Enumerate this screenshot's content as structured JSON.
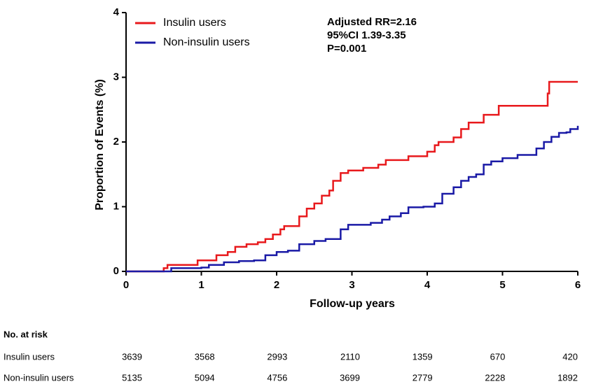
{
  "chart_data": {
    "type": "step",
    "x_label": "Follow-up years",
    "y_label": "Proportion of Events (%)",
    "xlim": [
      0,
      6
    ],
    "xticks": [
      0,
      1,
      2,
      3,
      4,
      5,
      6
    ],
    "ylim": [
      0,
      4
    ],
    "yticks": [
      0,
      1,
      2,
      3,
      4
    ],
    "grid": false,
    "legend": "top-left",
    "annotations": [
      "Adjusted RR=2.16",
      "95%CI 1.39-3.35",
      "P=0.001"
    ],
    "series": [
      {
        "name": "Insulin users",
        "color": "#e8191c",
        "x": [
          0,
          0.3,
          0.5,
          0.55,
          0.95,
          1.2,
          1.35,
          1.45,
          1.6,
          1.75,
          1.85,
          1.95,
          2.05,
          2.1,
          2.3,
          2.4,
          2.5,
          2.6,
          2.7,
          2.75,
          2.85,
          2.95,
          3.15,
          3.35,
          3.45,
          3.75,
          4.0,
          4.1,
          4.15,
          4.35,
          4.45,
          4.55,
          4.75,
          4.95,
          5.6,
          5.62,
          6.0
        ],
        "values": [
          0,
          0,
          0.05,
          0.1,
          0.17,
          0.25,
          0.3,
          0.38,
          0.42,
          0.45,
          0.5,
          0.57,
          0.65,
          0.7,
          0.85,
          0.97,
          1.05,
          1.17,
          1.25,
          1.4,
          1.52,
          1.56,
          1.6,
          1.65,
          1.72,
          1.78,
          1.85,
          1.95,
          2.0,
          2.07,
          2.2,
          2.3,
          2.42,
          2.56,
          2.75,
          2.93,
          2.93
        ]
      },
      {
        "name": "Non-insulin users",
        "color": "#1a1aa6",
        "x": [
          0,
          0.4,
          0.6,
          1.0,
          1.1,
          1.3,
          1.5,
          1.7,
          1.85,
          2.0,
          2.15,
          2.3,
          2.5,
          2.65,
          2.85,
          2.95,
          3.25,
          3.4,
          3.5,
          3.65,
          3.75,
          3.95,
          4.1,
          4.2,
          4.35,
          4.45,
          4.55,
          4.65,
          4.75,
          4.85,
          5.0,
          5.2,
          5.45,
          5.55,
          5.65,
          5.75,
          5.85,
          5.9,
          6.0
        ],
        "values": [
          0,
          0,
          0.05,
          0.06,
          0.1,
          0.14,
          0.16,
          0.17,
          0.25,
          0.3,
          0.32,
          0.42,
          0.47,
          0.5,
          0.65,
          0.72,
          0.75,
          0.8,
          0.85,
          0.9,
          0.99,
          1.0,
          1.05,
          1.2,
          1.3,
          1.4,
          1.46,
          1.5,
          1.65,
          1.7,
          1.75,
          1.8,
          1.9,
          2.0,
          2.08,
          2.14,
          2.15,
          2.2,
          2.25
        ]
      }
    ],
    "risk_table": {
      "title": "No. at risk",
      "rows": [
        {
          "values": [
            3639,
            3568,
            2993,
            2110,
            1359,
            670,
            420
          ]
        },
        {
          "values": [
            5135,
            5094,
            4756,
            3699,
            2779,
            2228,
            1892
          ]
        }
      ]
    }
  }
}
